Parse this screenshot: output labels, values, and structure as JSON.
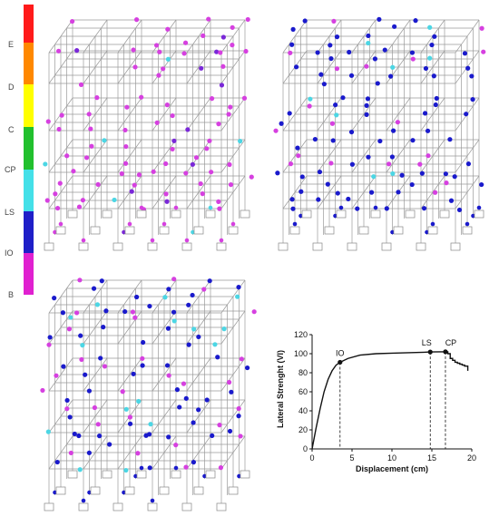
{
  "colors": {
    "grid": "#9a9a9a",
    "B": "#e020d0",
    "IO": "#7a28d8",
    "LS": "#1f1fc8",
    "CP": "#44e0e8",
    "C": "#22c02e",
    "D": "#ffff00",
    "E": "#ff8800",
    "top": "#ff1a1a",
    "hinge_pink": "#d640e0",
    "hinge_blue": "#1a1acc",
    "hinge_cyan": "#4cd6e4"
  },
  "scale": {
    "labels": [
      "E",
      "D",
      "C",
      "CP",
      "LS",
      "IO",
      "B"
    ]
  },
  "frames": [
    {
      "name": "frame-io",
      "dominant": "pink"
    },
    {
      "name": "frame-ls",
      "dominant": "blue"
    },
    {
      "name": "frame-cp",
      "dominant": "mixed"
    }
  ],
  "chart_data": {
    "type": "line",
    "xlabel": "Displacement (cm)",
    "ylabel": "Lateral Strenght (Vl)",
    "xlim": [
      0,
      20
    ],
    "ylim": [
      0,
      120
    ],
    "xticks": [
      0,
      5,
      10,
      15,
      20
    ],
    "yticks": [
      0,
      20,
      40,
      60,
      80,
      100,
      120
    ],
    "x": [
      0,
      0.5,
      1.0,
      1.5,
      2.0,
      2.5,
      3.0,
      3.5,
      4.5,
      6,
      8,
      10,
      12,
      14,
      14.8,
      16,
      16.7,
      17.0,
      17.3,
      17.6,
      17.9,
      18.2,
      18.5,
      18.8,
      19.1,
      19.5
    ],
    "y": [
      0,
      22,
      42,
      60,
      73,
      82,
      88,
      91,
      95,
      98.5,
      100,
      100.5,
      101,
      101.5,
      101.8,
      102,
      102,
      100,
      95,
      93,
      91,
      90,
      89,
      88,
      87,
      82
    ],
    "points": [
      {
        "label": "IO",
        "x": 3.5,
        "y": 91
      },
      {
        "label": "LS",
        "x": 14.8,
        "y": 101.8
      },
      {
        "label": "CP",
        "x": 16.7,
        "y": 102
      }
    ],
    "grid": false
  }
}
